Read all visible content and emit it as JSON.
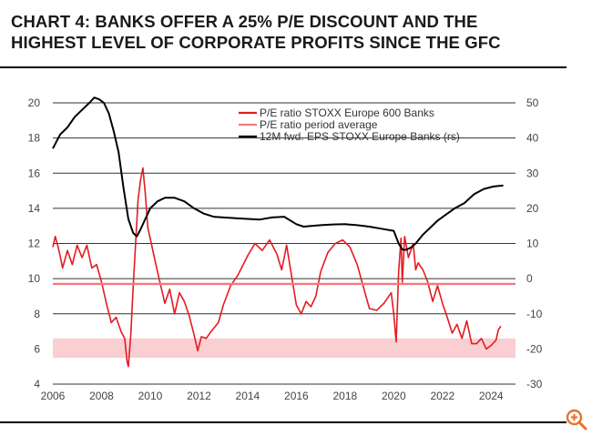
{
  "header": {
    "title_line1": "CHART 4: BANKS OFFER A 25% P/E DISCOUNT AND THE",
    "title_line2": "HIGHEST LEVEL OF CORPORATE PROFITS SINCE THE GFC"
  },
  "colors": {
    "pe": "#e31b23",
    "avg": "#f07a80",
    "band": "#f9cfd1",
    "eps": "#000000",
    "grid": "#333333",
    "zoom_icon": "#e8732a"
  },
  "icons": {
    "zoom": "zoom-in-icon"
  },
  "chart_data": {
    "type": "line",
    "title": "",
    "xlabel": "",
    "ylabel": "",
    "x_ticks": [
      "2006",
      "2008",
      "2010",
      "2012",
      "2014",
      "2016",
      "2018",
      "2020",
      "2022",
      "2024"
    ],
    "xlim": [
      2006.0,
      2025.0
    ],
    "ylim_left": [
      4,
      20
    ],
    "yticks_left": [
      "20",
      "18",
      "16",
      "14",
      "12",
      "10",
      "8",
      "6",
      "4"
    ],
    "ylim_right": [
      -30,
      50
    ],
    "yticks_right": [
      "50",
      "40",
      "30",
      "20",
      "10",
      "0",
      "-10",
      "-20",
      "-30"
    ],
    "legend": {
      "position": "top-right",
      "entries": [
        {
          "label": "P/E ratio STOXX Europe 600 Banks",
          "color": "#e31b23"
        },
        {
          "label": "P/E ratio period average",
          "color": "#f07a80"
        },
        {
          "label": "12M fwd. EPS STOXX Europe Banks (rs)",
          "color": "#000000"
        }
      ]
    },
    "band": {
      "low": 5.5,
      "high": 6.6
    },
    "series": [
      {
        "name": "P/E ratio STOXX Europe 600 Banks",
        "axis": "left",
        "x": [
          2006.0,
          2006.1,
          2006.2,
          2006.3,
          2006.4,
          2006.6,
          2006.8,
          2007.0,
          2007.2,
          2007.4,
          2007.6,
          2007.8,
          2008.0,
          2008.2,
          2008.4,
          2008.6,
          2008.8,
          2008.95,
          2009.05,
          2009.1,
          2009.2,
          2009.3,
          2009.4,
          2009.5,
          2009.6,
          2009.7,
          2009.8,
          2009.9,
          2010.0,
          2010.2,
          2010.4,
          2010.6,
          2010.8,
          2011.0,
          2011.2,
          2011.4,
          2011.6,
          2011.8,
          2011.95,
          2012.1,
          2012.3,
          2012.5,
          2012.8,
          2013.0,
          2013.3,
          2013.6,
          2014.0,
          2014.3,
          2014.6,
          2014.9,
          2015.2,
          2015.4,
          2015.6,
          2015.8,
          2016.0,
          2016.2,
          2016.4,
          2016.6,
          2016.8,
          2017.0,
          2017.3,
          2017.6,
          2017.9,
          2018.2,
          2018.5,
          2018.8,
          2019.0,
          2019.3,
          2019.6,
          2019.9,
          2020.0,
          2020.1,
          2020.2,
          2020.3,
          2020.35,
          2020.45,
          2020.6,
          2020.8,
          2020.9,
          2021.0,
          2021.2,
          2021.4,
          2021.6,
          2021.8,
          2022.0,
          2022.2,
          2022.4,
          2022.6,
          2022.8,
          2023.0,
          2023.2,
          2023.4,
          2023.6,
          2023.8,
          2024.0,
          2024.2,
          2024.3,
          2024.4
        ],
        "y": [
          11.8,
          12.4,
          11.9,
          11.3,
          10.6,
          11.6,
          10.8,
          11.9,
          11.2,
          11.9,
          10.6,
          10.8,
          9.8,
          8.6,
          7.5,
          7.8,
          7.0,
          6.6,
          5.3,
          5.0,
          6.8,
          9.5,
          12.0,
          14.5,
          15.6,
          16.3,
          14.8,
          12.9,
          12.3,
          11.0,
          9.8,
          8.6,
          9.4,
          8.0,
          9.2,
          8.7,
          7.9,
          6.8,
          5.9,
          6.7,
          6.6,
          7.0,
          7.5,
          8.5,
          9.6,
          10.2,
          11.3,
          12.0,
          11.6,
          12.2,
          11.4,
          10.5,
          11.9,
          10.2,
          8.5,
          8.0,
          8.7,
          8.4,
          9.0,
          10.4,
          11.5,
          12.0,
          12.2,
          11.8,
          10.8,
          9.3,
          8.3,
          8.2,
          8.6,
          9.2,
          8.0,
          6.4,
          10.4,
          12.3,
          9.8,
          12.4,
          11.2,
          12.0,
          10.5,
          10.9,
          10.5,
          9.8,
          8.7,
          9.6,
          8.6,
          7.8,
          6.9,
          7.4,
          6.6,
          7.6,
          6.3,
          6.3,
          6.6,
          6.0,
          6.2,
          6.5,
          7.1,
          7.3
        ]
      },
      {
        "name": "P/E ratio period average",
        "axis": "left",
        "x": [
          2006.0,
          2025.0
        ],
        "y": [
          9.7,
          9.7
        ]
      },
      {
        "name": "12M fwd. EPS STOXX Europe Banks (rs)",
        "axis": "right",
        "x": [
          2006.0,
          2006.3,
          2006.6,
          2006.9,
          2007.2,
          2007.5,
          2007.7,
          2007.9,
          2008.1,
          2008.3,
          2008.5,
          2008.7,
          2008.9,
          2009.1,
          2009.3,
          2009.45,
          2009.6,
          2009.8,
          2010.0,
          2010.3,
          2010.6,
          2011.0,
          2011.4,
          2011.8,
          2012.2,
          2012.6,
          2013.0,
          2013.5,
          2014.0,
          2014.5,
          2015.0,
          2015.5,
          2016.0,
          2016.3,
          2016.6,
          2017.0,
          2017.5,
          2018.0,
          2018.5,
          2019.0,
          2019.5,
          2020.0,
          2020.2,
          2020.35,
          2020.5,
          2020.7,
          2020.9,
          2021.2,
          2021.5,
          2021.8,
          2022.1,
          2022.5,
          2022.9,
          2023.3,
          2023.7,
          2024.1,
          2024.5
        ],
        "y": [
          37,
          41,
          43,
          46,
          48,
          50,
          51.5,
          51,
          50,
          47,
          42,
          36,
          26,
          17,
          13,
          12,
          14,
          17,
          20,
          22,
          23,
          23,
          22,
          20,
          18.5,
          17.6,
          17.4,
          17.2,
          17.0,
          16.8,
          17.4,
          17.6,
          15.5,
          14.8,
          15.0,
          15.2,
          15.4,
          15.5,
          15.2,
          14.8,
          14.2,
          13.6,
          10,
          8.3,
          8.2,
          8.8,
          10.0,
          12.5,
          14.5,
          16.5,
          18.0,
          20.0,
          21.5,
          24.0,
          25.5,
          26.2,
          26.5
        ]
      }
    ]
  }
}
